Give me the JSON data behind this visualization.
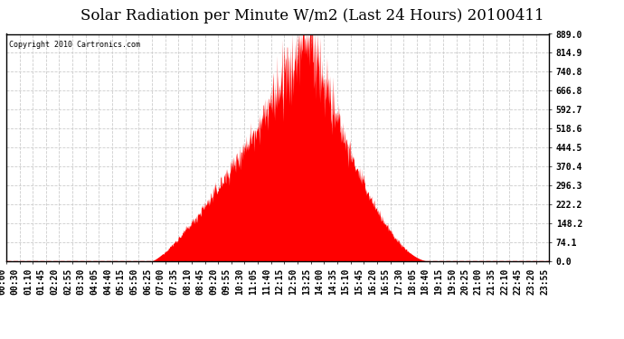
{
  "title": "Solar Radiation per Minute W/m2 (Last 24 Hours) 20100411",
  "copyright_text": "Copyright 2010 Cartronics.com",
  "ytick_labels": [
    "0.0",
    "74.1",
    "148.2",
    "222.2",
    "296.3",
    "370.4",
    "444.5",
    "518.6",
    "592.7",
    "666.8",
    "740.8",
    "814.9",
    "889.0"
  ],
  "ytick_values": [
    0.0,
    74.1,
    148.2,
    222.2,
    296.3,
    370.4,
    444.5,
    518.6,
    592.7,
    666.8,
    740.8,
    814.9,
    889.0
  ],
  "ymax": 889.0,
  "ymin": 0.0,
  "fill_color": "#FF0000",
  "dashed_line_color": "#FF0000",
  "background_color": "#FFFFFF",
  "grid_color": "#CCCCCC",
  "title_fontsize": 12,
  "tick_fontsize": 7,
  "xlabel_rotation": 90,
  "sunrise_min": 385,
  "sunset_min": 1120,
  "peak_min": 805,
  "peak_value": 889.0,
  "n_points": 1440,
  "xtick_labels": [
    "00:00",
    "00:30",
    "01:10",
    "01:45",
    "02:20",
    "02:55",
    "03:30",
    "04:05",
    "04:40",
    "05:15",
    "05:50",
    "06:25",
    "07:00",
    "07:35",
    "08:10",
    "08:45",
    "09:20",
    "09:55",
    "10:30",
    "11:05",
    "11:40",
    "12:15",
    "12:50",
    "13:25",
    "14:00",
    "14:35",
    "15:10",
    "15:45",
    "16:20",
    "16:55",
    "17:30",
    "18:05",
    "18:40",
    "19:15",
    "19:50",
    "20:25",
    "21:00",
    "21:35",
    "22:10",
    "22:45",
    "23:20",
    "23:55"
  ]
}
